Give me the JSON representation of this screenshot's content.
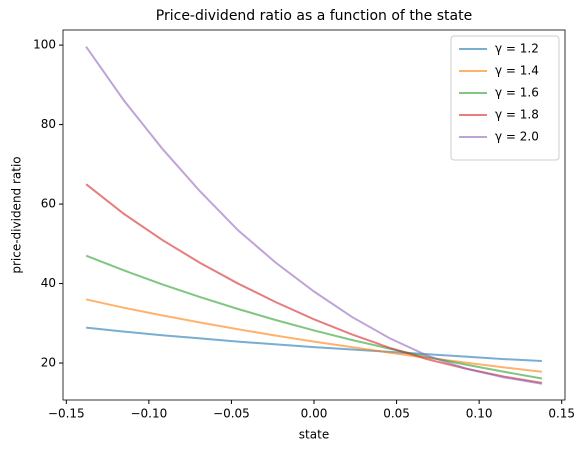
{
  "chart_data": {
    "type": "line",
    "title": "Price-dividend ratio as a function of the state",
    "xlabel": "state",
    "ylabel": "price-dividend ratio",
    "x": [
      -0.138,
      -0.115,
      -0.092,
      -0.069,
      -0.046,
      -0.023,
      0,
      0.023,
      0.046,
      0.069,
      0.092,
      0.115,
      0.138
    ],
    "series": [
      {
        "name": "γ = 1.2",
        "color": "#1f77b4",
        "values": [
          28.9,
          27.9,
          27.0,
          26.2,
          25.4,
          24.7,
          24.0,
          23.4,
          22.8,
          22.2,
          21.6,
          21.0,
          20.5
        ]
      },
      {
        "name": "γ = 1.4",
        "color": "#ff7f0e",
        "values": [
          36.0,
          33.9,
          32.0,
          30.2,
          28.5,
          26.9,
          25.4,
          24.0,
          22.6,
          21.3,
          20.1,
          18.9,
          17.8
        ]
      },
      {
        "name": "γ = 1.6",
        "color": "#2ca02c",
        "values": [
          47.0,
          43.3,
          39.8,
          36.6,
          33.6,
          30.8,
          28.2,
          25.8,
          23.6,
          21.5,
          19.6,
          17.8,
          16.1
        ]
      },
      {
        "name": "γ = 1.8",
        "color": "#d62728",
        "values": [
          65.0,
          57.5,
          51.0,
          45.2,
          40.0,
          35.3,
          31.0,
          27.2,
          23.8,
          20.9,
          18.6,
          16.6,
          15.0
        ]
      },
      {
        "name": "γ = 2.0",
        "color": "#9467bd",
        "values": [
          99.6,
          86.0,
          74.0,
          63.2,
          53.4,
          45.2,
          38.0,
          31.6,
          26.2,
          21.8,
          18.6,
          16.4,
          14.8
        ]
      }
    ],
    "xlim": [
      -0.152,
      0.152
    ],
    "xticks": [
      {
        "value": -0.15,
        "label": "−0.15"
      },
      {
        "value": -0.1,
        "label": "−0.10"
      },
      {
        "value": -0.05,
        "label": "−0.05"
      },
      {
        "value": 0,
        "label": "0.00"
      },
      {
        "value": 0.05,
        "label": "0.05"
      },
      {
        "value": 0.1,
        "label": "0.10"
      },
      {
        "value": 0.15,
        "label": "0.15"
      }
    ],
    "ylim": [
      10.7,
      103.8
    ],
    "yticks": [
      20,
      40,
      60,
      80,
      100
    ],
    "grid": false,
    "legend": "upper right",
    "line_opacity": 0.6
  }
}
